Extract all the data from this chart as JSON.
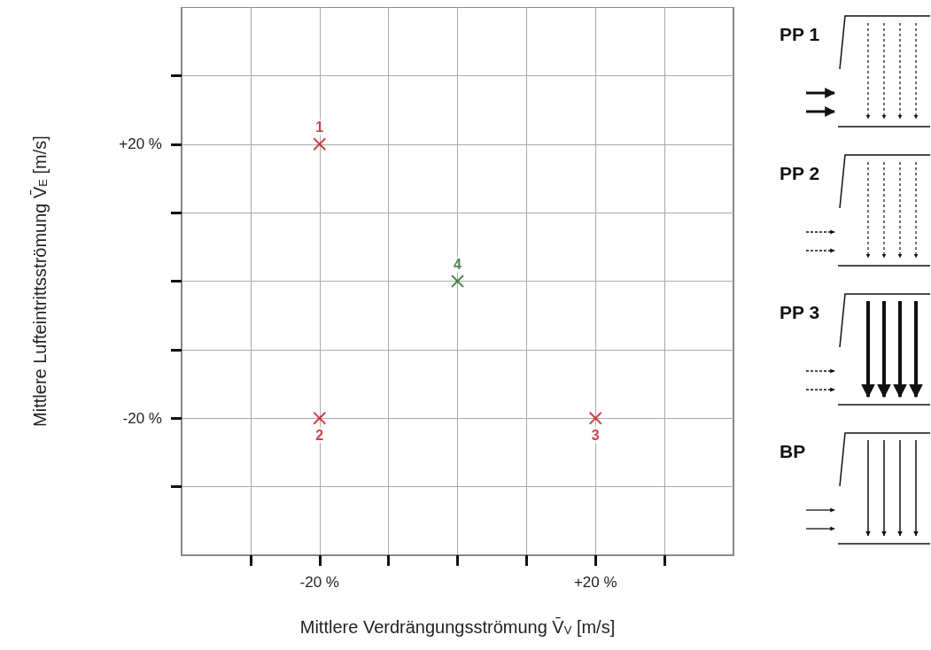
{
  "chart_data": {
    "type": "scatter",
    "xlabel": "Mittlere Verdrängungsströmung V̄$_{V}$ [m/s]",
    "ylabel": "Mittlere Lufteintrittsströmung V̄$_{E}$ [m/s]",
    "x": [
      -20,
      -20,
      20,
      0
    ],
    "values": [
      20,
      -20,
      -20,
      0
    ],
    "colors": [
      "#c0141c",
      "#c0141c",
      "#c0141c",
      "#1e6b2a"
    ],
    "marker": "cross",
    "xlim": [
      -40,
      40
    ],
    "ylim": [
      -40,
      40
    ],
    "xticks": [
      {
        "value": -30,
        "label": null
      },
      {
        "value": -20,
        "label": "-20 %"
      },
      {
        "value": -10,
        "label": null
      },
      {
        "value": 0,
        "label": null
      },
      {
        "value": 10,
        "label": null
      },
      {
        "value": 20,
        "label": "+20 %"
      },
      {
        "value": 30,
        "label": null
      }
    ],
    "yticks": [
      {
        "value": -30,
        "label": null
      },
      {
        "value": -20,
        "label": "-20 %"
      },
      {
        "value": -10,
        "label": null
      },
      {
        "value": 0,
        "label": null
      },
      {
        "value": 10,
        "label": null
      },
      {
        "value": 20,
        "label": "+20 %"
      },
      {
        "value": 30,
        "label": null
      }
    ],
    "grid": true,
    "annotations": [
      {
        "text": "1",
        "x": -20,
        "y": 20
      },
      {
        "text": "2",
        "x": -20,
        "y": -20
      },
      {
        "text": "3",
        "x": 20,
        "y": -20
      },
      {
        "text": "4",
        "x": 0,
        "y": 0
      },
      "PP 1",
      "PP 2",
      "PP 3",
      "BP"
    ]
  }
}
